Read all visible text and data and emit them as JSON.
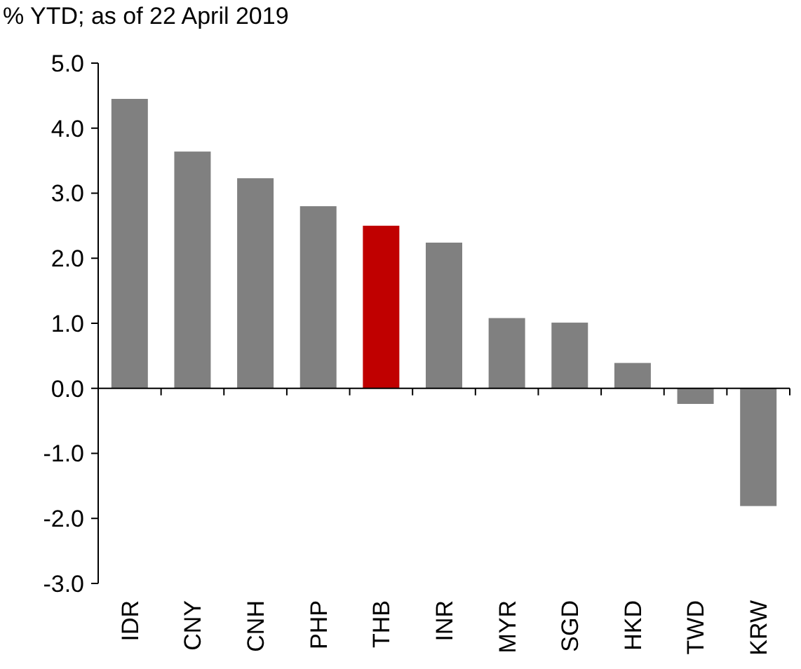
{
  "chart_data": {
    "type": "bar",
    "title": "% YTD; as of 22 April 2019",
    "categories": [
      "IDR",
      "CNY",
      "CNH",
      "PHP",
      "THB",
      "INR",
      "MYR",
      "SGD",
      "HKD",
      "TWD",
      "KRW"
    ],
    "values": [
      4.45,
      3.64,
      3.23,
      2.8,
      2.5,
      2.24,
      1.08,
      1.01,
      0.39,
      -0.24,
      -1.81
    ],
    "colors": [
      "#808080",
      "#808080",
      "#808080",
      "#808080",
      "#c00000",
      "#808080",
      "#808080",
      "#808080",
      "#808080",
      "#808080",
      "#808080"
    ],
    "ylim": [
      -3,
      5
    ],
    "yticks": [
      {
        "value": -3,
        "label": "-3.0"
      },
      {
        "value": -2,
        "label": "-2.0"
      },
      {
        "value": -1,
        "label": "-1.0"
      },
      {
        "value": 0,
        "label": "0.0"
      },
      {
        "value": 1,
        "label": "1.0"
      },
      {
        "value": 2,
        "label": "2.0"
      },
      {
        "value": 3,
        "label": "3.0"
      },
      {
        "value": 4,
        "label": "4.0"
      },
      {
        "value": 5,
        "label": "5.0"
      }
    ]
  }
}
